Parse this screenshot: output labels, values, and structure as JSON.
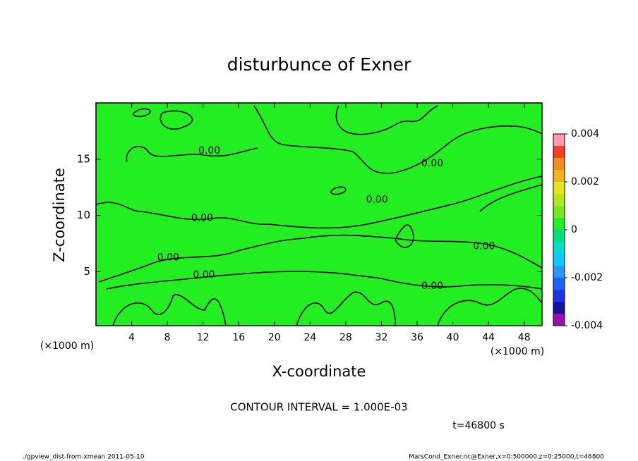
{
  "chart_data": {
    "type": "contour",
    "title": "disturbunce of Exner",
    "x_label": "X-coordinate",
    "y_label": "Z-coordinate",
    "x_unit_left": "(×1000 m)",
    "x_unit_right": "(×1000 m)",
    "xlim": [
      0,
      50
    ],
    "xticks": [
      4,
      8,
      12,
      16,
      20,
      24,
      28,
      32,
      36,
      40,
      44,
      48
    ],
    "ylim": [
      0.2,
      20
    ],
    "yticks": [
      5,
      10,
      15
    ],
    "contour_interval": "CONTOUR INTERVAL = 1.000E-03",
    "contour_labels": [
      {
        "text": "0.00",
        "x": 12.7,
        "y": 15.75
      },
      {
        "text": "0.00",
        "x": 11.9,
        "y": 9.75
      },
      {
        "text": "0.00",
        "x": 8.1,
        "y": 6.25
      },
      {
        "text": "0.00",
        "x": 12.1,
        "y": 4.7
      },
      {
        "text": "0.00",
        "x": 31.5,
        "y": 11.4
      },
      {
        "text": "0.00",
        "x": 37.7,
        "y": 14.6
      },
      {
        "text": "0.00",
        "x": 37.7,
        "y": 3.7
      },
      {
        "text": "0.00",
        "x": 43.5,
        "y": 7.25
      }
    ],
    "colorbar": {
      "levels": [
        -0.004,
        -0.0035,
        -0.003,
        -0.0025,
        -0.002,
        -0.0015,
        -0.001,
        -0.0005,
        0,
        0.0005,
        0.001,
        0.0015,
        0.002,
        0.0025,
        0.003,
        0.0035,
        0.004
      ],
      "colors": [
        "#9a10b0",
        "#1a10a0",
        "#1e32e6",
        "#2060ff",
        "#2896ff",
        "#10c8ff",
        "#00e0c8",
        "#00e080",
        "#22ee22",
        "#78e61e",
        "#b4e61e",
        "#e6e61e",
        "#f0b41e",
        "#f08c1e",
        "#fa3c28",
        "#ff9aaa"
      ],
      "ticks": [
        -0.004,
        -0.002,
        0,
        0.002,
        0.004
      ],
      "field_value": 0
    },
    "time_label": "t=46800 s",
    "footer_left": "./gpview_dist-from-xmean  2011-05-10",
    "footer_right": "MarsCond_Exner.nc@Exner,x=0:500000,z=0:25000,t=46800"
  }
}
